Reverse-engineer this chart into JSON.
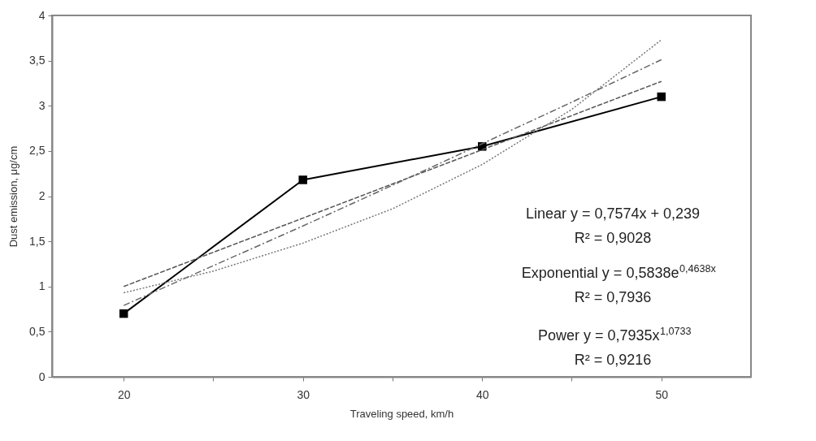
{
  "chart_data": {
    "type": "line",
    "xlabel": "Traveling speed,  km/h",
    "ylabel": "Dust emission,  μg/cm",
    "xlim": [
      16,
      55
    ],
    "xticks": [
      20,
      {
        "value": 25,
        "label": null
      },
      30,
      {
        "value": 35,
        "label": null
      },
      40,
      {
        "value": 45,
        "label": null
      },
      50
    ],
    "ylim": [
      0,
      4
    ],
    "yticks": [
      0,
      {
        "value": 0.5,
        "label": "0,5"
      },
      1,
      {
        "value": 1.5,
        "label": "1,5"
      },
      2,
      {
        "value": 2.5,
        "label": "2,5"
      },
      3,
      {
        "value": 3.5,
        "label": "3,5"
      },
      4
    ],
    "grid": false,
    "series": [
      {
        "color": "#000000",
        "x": [
          20,
          30,
          40,
          50
        ],
        "values": [
          0.7,
          2.18,
          2.55,
          3.1
        ],
        "marker": "square",
        "line_style": "solid"
      },
      {
        "color": "#555555",
        "x": [
          20,
          50
        ],
        "values": [
          1.0,
          3.27
        ],
        "marker": "none",
        "line_style": "dashed"
      },
      {
        "color": "#777777",
        "x": [
          20,
          25,
          30,
          35,
          40,
          45,
          50
        ],
        "values": [
          0.93,
          1.17,
          1.48,
          1.86,
          2.35,
          2.96,
          3.73
        ],
        "marker": "none",
        "line_style": "dotted"
      },
      {
        "color": "#666666",
        "x": [
          20,
          25,
          30,
          35,
          40,
          45,
          50
        ],
        "values": [
          0.79,
          1.23,
          1.67,
          2.12,
          2.58,
          3.04,
          3.51
        ],
        "marker": "none",
        "line_style": "dashdot"
      }
    ],
    "annotations": [
      "Linear y = 0,7574x + 0,239",
      "R² = 0,9028",
      "Exponential y = 0,5838e$^{0,4638x}$",
      "R² = 0,7936",
      "Power y = 0,7935x$^{1,0733}$",
      "R² = 0,9216"
    ]
  }
}
